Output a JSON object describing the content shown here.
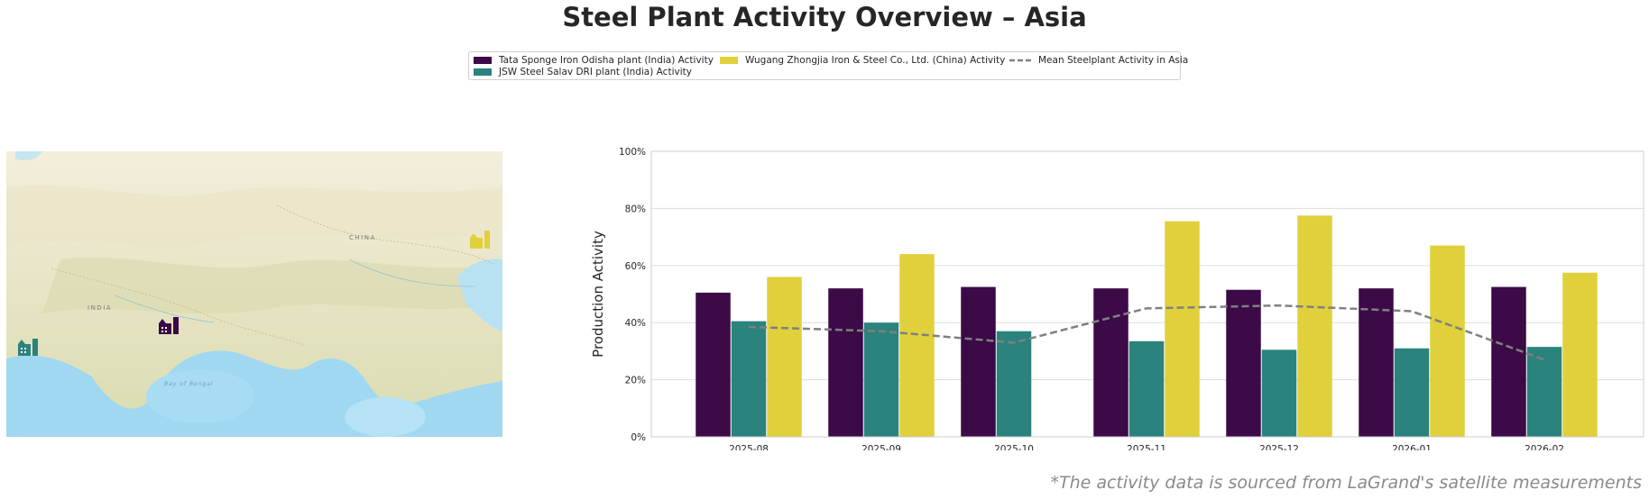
{
  "title": "Steel Plant Activity Overview – Asia",
  "legend": [
    {
      "label": "Tata Sponge Iron Odisha plant (India) Activity",
      "color": "#3b0a47",
      "type": "bar"
    },
    {
      "label": "JSW Steel Salav DRI plant (India) Activity",
      "color": "#2b837d",
      "type": "bar"
    },
    {
      "label": "Wugang Zhongjia Iron & Steel Co., Ltd. (China) Activity",
      "color": "#e0d03c",
      "type": "bar"
    },
    {
      "label": "Mean Steelplant Activity in Asia",
      "color": "#808080",
      "type": "line"
    }
  ],
  "map": {
    "labels": [
      "CHINA",
      "INDIA",
      "Bay of Bengal"
    ]
  },
  "chart_data": {
    "type": "bar",
    "categories": [
      "2025-08",
      "2025-09",
      "2025-10",
      "2025-11",
      "2025-12",
      "2026-01",
      "2026-02"
    ],
    "series": [
      {
        "name": "Tata Sponge Iron Odisha plant (India) Activity",
        "values": [
          50.5,
          52,
          52.5,
          52,
          51.5,
          52,
          52.5
        ],
        "color": "#3b0a47"
      },
      {
        "name": "JSW Steel Salav DRI plant (India) Activity",
        "values": [
          40.5,
          40,
          37,
          33.5,
          30.5,
          31,
          31.5
        ],
        "color": "#2b837d"
      },
      {
        "name": "Wugang Zhongjia Iron & Steel Co., Ltd. (China) Activity",
        "values": [
          56,
          64,
          null,
          75.5,
          77.5,
          67,
          57.5
        ],
        "color": "#e0d03c"
      }
    ],
    "line": {
      "name": "Mean Steelplant Activity in Asia",
      "values": [
        38.5,
        37,
        33,
        45,
        46,
        44,
        27
      ],
      "color": "#808080",
      "style": "dashed"
    },
    "ylabel": "Production Activity",
    "ylim": [
      0,
      100
    ],
    "yticks": [
      "0%",
      "20%",
      "40%",
      "60%",
      "80%",
      "100%"
    ],
    "grid": true
  },
  "footnote": "*The activity data is sourced from LaGrand's satellite measurements"
}
